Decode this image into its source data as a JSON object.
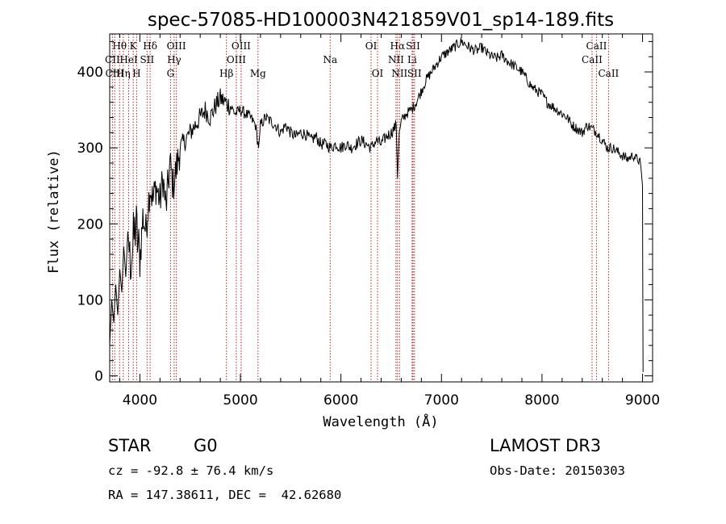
{
  "chart_data": {
    "type": "line",
    "title": "spec-57085-HD100003N421859V01_sp14-189.fits",
    "xlabel": "Wavelength (Å)",
    "ylabel": "Flux (relative)",
    "xlim": [
      3700,
      9100
    ],
    "ylim": [
      -8,
      450
    ],
    "xticks": [
      4000,
      5000,
      6000,
      7000,
      8000,
      9000
    ],
    "xtick_labels": [
      "4000",
      "5000",
      "6000",
      "7000",
      "8000",
      "9000"
    ],
    "yticks": [
      0,
      100,
      200,
      300,
      400
    ],
    "ytick_labels": [
      "0",
      "100",
      "200",
      "300",
      "400"
    ],
    "series": [
      {
        "name": "spectrum",
        "x": [
          3700,
          3720,
          3740,
          3760,
          3780,
          3800,
          3820,
          3840,
          3860,
          3880,
          3900,
          3930,
          3960,
          4000,
          4030,
          4060,
          4100,
          4130,
          4160,
          4200,
          4230,
          4260,
          4300,
          4330,
          4360,
          4400,
          4450,
          4500,
          4550,
          4600,
          4650,
          4700,
          4750,
          4800,
          4850,
          4900,
          4950,
          5000,
          5050,
          5100,
          5150,
          5180,
          5200,
          5250,
          5300,
          5350,
          5400,
          5450,
          5500,
          5550,
          5600,
          5650,
          5700,
          5750,
          5800,
          5850,
          5900,
          5950,
          6000,
          6050,
          6100,
          6150,
          6200,
          6250,
          6300,
          6350,
          6400,
          6450,
          6500,
          6550,
          6563,
          6580,
          6600,
          6650,
          6700,
          6750,
          6800,
          6850,
          6900,
          6950,
          7000,
          7050,
          7100,
          7150,
          7200,
          7250,
          7300,
          7350,
          7400,
          7450,
          7500,
          7550,
          7600,
          7650,
          7700,
          7750,
          7800,
          7850,
          7900,
          7950,
          8000,
          8050,
          8100,
          8150,
          8200,
          8250,
          8300,
          8350,
          8400,
          8450,
          8500,
          8550,
          8600,
          8650,
          8700,
          8750,
          8800,
          8850,
          8900,
          8950,
          8980,
          9000,
          9005
        ],
        "y": [
          40,
          100,
          70,
          120,
          80,
          140,
          110,
          170,
          130,
          190,
          150,
          170,
          200,
          150,
          210,
          190,
          250,
          230,
          250,
          230,
          260,
          220,
          280,
          250,
          270,
          300,
          310,
          320,
          330,
          340,
          350,
          340,
          355,
          365,
          360,
          355,
          345,
          350,
          345,
          340,
          330,
          300,
          330,
          340,
          335,
          330,
          320,
          330,
          320,
          315,
          320,
          318,
          310,
          315,
          305,
          305,
          300,
          305,
          300,
          305,
          300,
          305,
          310,
          305,
          300,
          310,
          305,
          315,
          320,
          330,
          260,
          320,
          335,
          345,
          350,
          360,
          375,
          390,
          400,
          410,
          420,
          425,
          430,
          435,
          440,
          435,
          430,
          428,
          432,
          425,
          420,
          418,
          422,
          415,
          410,
          405,
          400,
          390,
          380,
          375,
          370,
          360,
          355,
          350,
          345,
          340,
          330,
          325,
          320,
          330,
          325,
          320,
          310,
          300,
          300,
          295,
          290,
          285,
          290,
          285,
          280,
          250,
          5
        ],
        "color": "#000000"
      }
    ],
    "spectral_lines": [
      {
        "label": "Hθ",
        "wavelength": 3798,
        "row": 0
      },
      {
        "label": "K",
        "wavelength": 3934,
        "row": 0
      },
      {
        "label": "Hδ",
        "wavelength": 4102,
        "row": 0
      },
      {
        "label": "OIII",
        "wavelength": 4363,
        "row": 0
      },
      {
        "label": "OIII",
        "wavelength": 5007,
        "row": 0
      },
      {
        "label": "OI",
        "wavelength": 6300,
        "row": 0
      },
      {
        "label": "Hα",
        "wavelength": 6563,
        "row": 0
      },
      {
        "label": "SII",
        "wavelength": 6717,
        "row": 0
      },
      {
        "label": "CaII",
        "wavelength": 8542,
        "row": 0
      },
      {
        "label": "CII",
        "wavelength": 3727,
        "row": 1
      },
      {
        "label": "HeI",
        "wavelength": 3889,
        "row": 1
      },
      {
        "label": "SII",
        "wavelength": 4072,
        "row": 1
      },
      {
        "label": "Hγ",
        "wavelength": 4341,
        "row": 1
      },
      {
        "label": "OIII",
        "wavelength": 4959,
        "row": 1
      },
      {
        "label": "Na",
        "wavelength": 5893,
        "row": 1
      },
      {
        "label": "NII",
        "wavelength": 6548,
        "row": 1
      },
      {
        "label": "Li",
        "wavelength": 6708,
        "row": 1
      },
      {
        "label": "CaII",
        "wavelength": 8498,
        "row": 1
      },
      {
        "label": "CIII",
        "wavelength": 3750,
        "row": 2
      },
      {
        "label": "Hη",
        "wavelength": 3835,
        "row": 2
      },
      {
        "label": "H",
        "wavelength": 3968,
        "row": 2
      },
      {
        "label": "G",
        "wavelength": 4305,
        "row": 2
      },
      {
        "label": "Hβ",
        "wavelength": 4861,
        "row": 2
      },
      {
        "label": "Mg",
        "wavelength": 5175,
        "row": 2
      },
      {
        "label": "OI",
        "wavelength": 6364,
        "row": 2
      },
      {
        "label": "NII",
        "wavelength": 6583,
        "row": 2
      },
      {
        "label": "SII",
        "wavelength": 6731,
        "row": 2
      },
      {
        "label": "CaII",
        "wavelength": 8662,
        "row": 2
      }
    ]
  },
  "info": {
    "class": "STAR",
    "subclass": "G0",
    "survey": "LAMOST DR3",
    "redshift": "cz = -92.8 ± 76.4 km/s",
    "obs_date": "Obs-Date: 20150303",
    "coords": "RA = 147.38611, DEC =  42.62680"
  },
  "colors": {
    "line_marker": "#b22222",
    "spectrum": "#000000",
    "axis": "#000000"
  }
}
